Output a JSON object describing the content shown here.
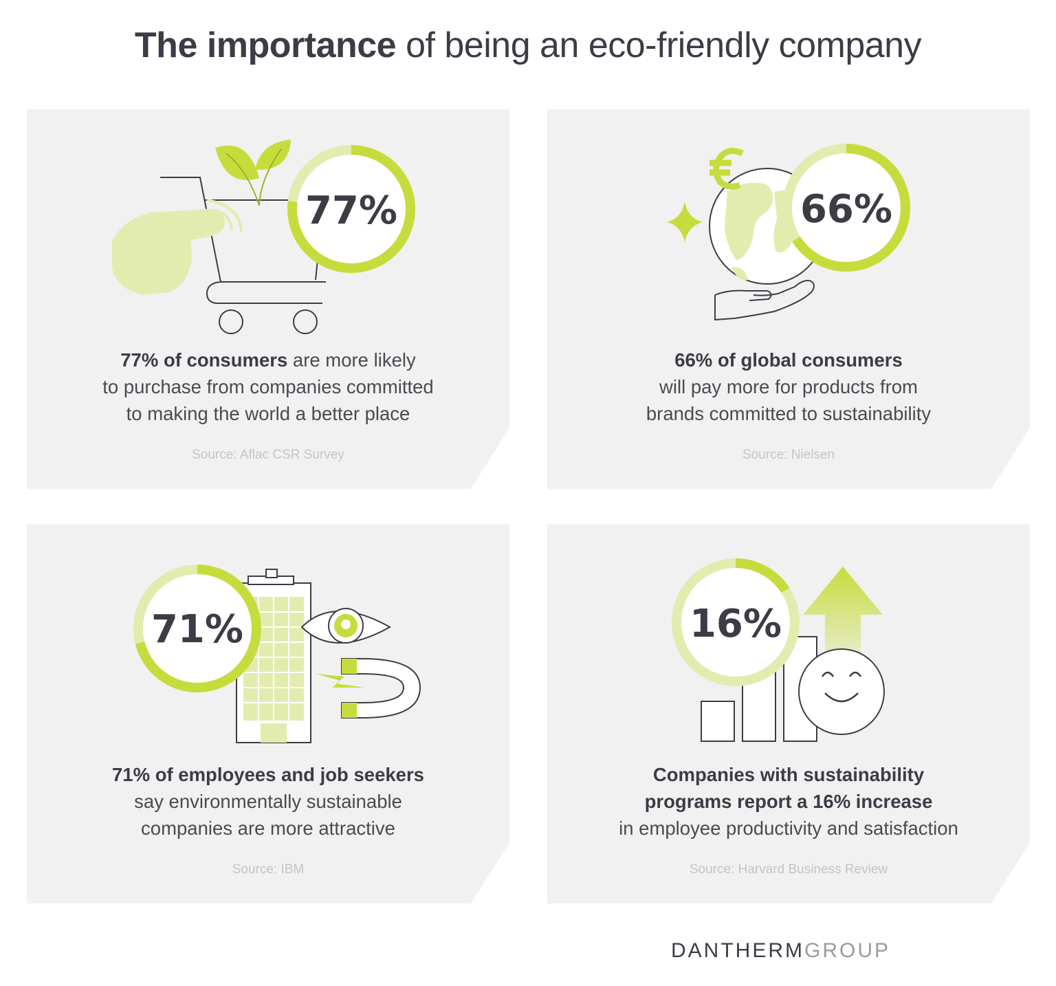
{
  "title": {
    "bold": "The importance",
    "rest": "of being an eco-friendly company"
  },
  "colors": {
    "accent": "#c6dc3c",
    "accent_light": "#e2ecaf",
    "card": "#f1f1f1",
    "text": "#3c3c46"
  },
  "cards": [
    {
      "percent": "77%",
      "ring_fraction": 0.77,
      "lines": [
        {
          "bold": "77% of consumers",
          "rest": " are more likely"
        },
        {
          "bold": "",
          "rest": "to purchase from companies committed"
        },
        {
          "bold": "",
          "rest": "to making the world a better place"
        }
      ],
      "source": "Source: Aflac CSR Survey",
      "icons": [
        "shopping-cart-icon",
        "pointing-hand-icon",
        "plant-leaves-icon"
      ]
    },
    {
      "percent": "66%",
      "ring_fraction": 0.66,
      "lines": [
        {
          "bold": "66% of global consumers",
          "rest": ""
        },
        {
          "bold": "",
          "rest": "will pay more for products from"
        },
        {
          "bold": "",
          "rest": "brands committed to sustainability"
        }
      ],
      "source": "Source: Nielsen",
      "icons": [
        "globe-icon",
        "euro-icon",
        "sparkle-icon",
        "open-hand-icon"
      ]
    },
    {
      "percent": "71%",
      "ring_fraction": 0.71,
      "lines": [
        {
          "bold": "71% of employees and job seekers",
          "rest": ""
        },
        {
          "bold": "",
          "rest": "say environmentally sustainable"
        },
        {
          "bold": "",
          "rest": "companies are more attractive"
        }
      ],
      "source": "Source: IBM",
      "icons": [
        "office-building-icon",
        "eye-icon",
        "magnet-icon",
        "lightning-icon"
      ]
    },
    {
      "percent": "16%",
      "ring_fraction": 0.16,
      "lines": [
        {
          "bold": "Companies with sustainability",
          "rest": ""
        },
        {
          "bold": "programs report a 16% increase",
          "rest": ""
        },
        {
          "bold": "",
          "rest": "in employee productivity and satisfaction"
        }
      ],
      "source": "Source: Harvard Business Review",
      "icons": [
        "bar-chart-icon",
        "up-arrow-icon",
        "smiley-face-icon"
      ]
    }
  ],
  "logo": {
    "part1": "DANTHERM",
    "part2": "GROUP"
  }
}
